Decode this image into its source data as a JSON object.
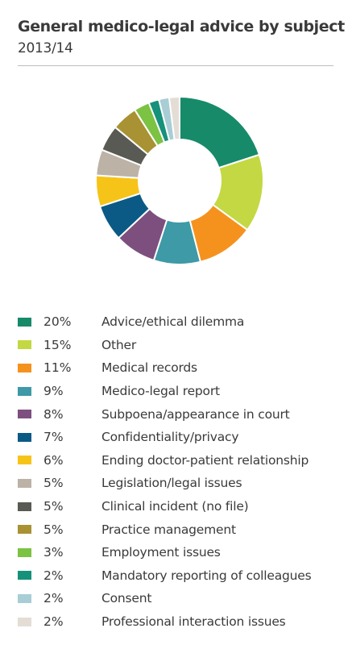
{
  "title": "General medico-legal advice by subject",
  "subtitle": "2013/14",
  "chart_data": {
    "type": "pie",
    "title": "General medico-legal advice by subject",
    "subtitle": "2013/14",
    "donut": true,
    "legend_position": "bottom",
    "slices": [
      {
        "label": "Advice/ethical dilemma",
        "value": 20,
        "display": "20%",
        "color": "#178a6a"
      },
      {
        "label": "Other",
        "value": 15,
        "display": "15%",
        "color": "#c3d843"
      },
      {
        "label": "Medical records",
        "value": 11,
        "display": "11%",
        "color": "#f5921e"
      },
      {
        "label": "Medico-legal report",
        "value": 9,
        "display": "9%",
        "color": "#3d9aa6"
      },
      {
        "label": "Subpoena/appearance in court",
        "value": 8,
        "display": "8%",
        "color": "#7d4f7e"
      },
      {
        "label": "Confidentiality/privacy",
        "value": 7,
        "display": "7%",
        "color": "#0b5a86"
      },
      {
        "label": "Ending doctor-patient relationship",
        "value": 6,
        "display": "6%",
        "color": "#f6c418"
      },
      {
        "label": "Legislation/legal issues",
        "value": 5,
        "display": "5%",
        "color": "#bcb2a6"
      },
      {
        "label": "Clinical incident (no file)",
        "value": 5,
        "display": "5%",
        "color": "#5a5a55"
      },
      {
        "label": "Practice management",
        "value": 5,
        "display": "5%",
        "color": "#a89233"
      },
      {
        "label": "Employment issues",
        "value": 3,
        "display": "3%",
        "color": "#7cc243"
      },
      {
        "label": "Mandatory reporting of colleagues",
        "value": 2,
        "display": "2%",
        "color": "#16917a"
      },
      {
        "label": "Consent",
        "value": 2,
        "display": "2%",
        "color": "#a8cdd5"
      },
      {
        "label": "Professional interaction issues",
        "value": 2,
        "display": "2%",
        "color": "#e3ddd6"
      }
    ]
  }
}
